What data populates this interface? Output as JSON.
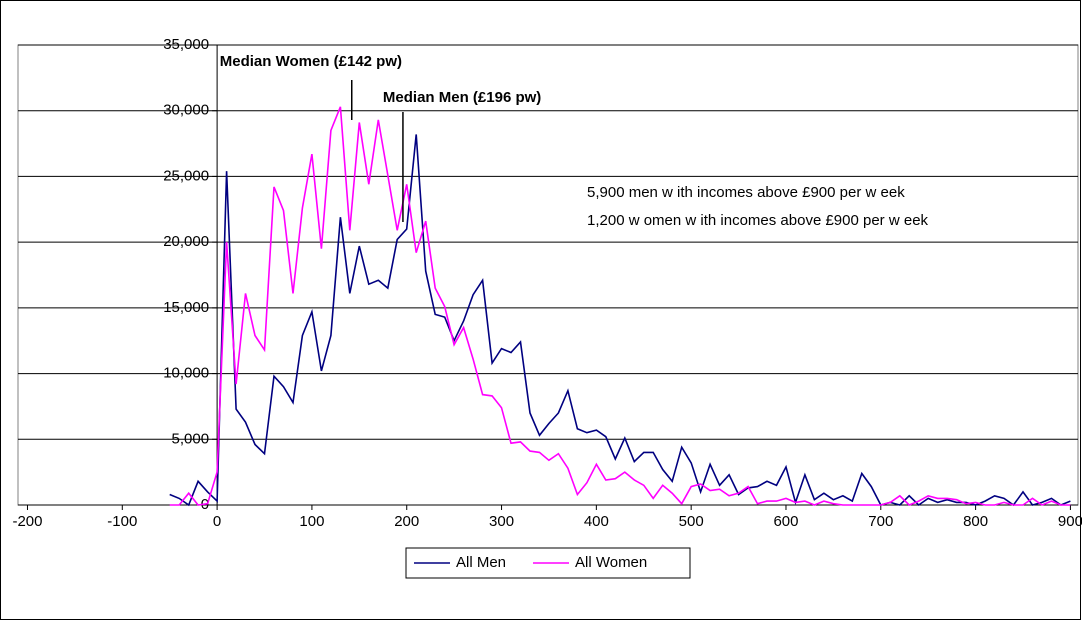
{
  "chart_data": {
    "type": "line",
    "x": [
      -50,
      -40,
      -30,
      -20,
      -10,
      0,
      10,
      20,
      30,
      40,
      50,
      60,
      70,
      80,
      90,
      100,
      110,
      120,
      130,
      140,
      150,
      160,
      170,
      180,
      190,
      200,
      210,
      220,
      230,
      240,
      250,
      260,
      270,
      280,
      290,
      300,
      310,
      320,
      330,
      340,
      350,
      360,
      370,
      380,
      390,
      400,
      410,
      420,
      430,
      440,
      450,
      460,
      470,
      480,
      490,
      500,
      510,
      520,
      530,
      540,
      550,
      560,
      570,
      580,
      590,
      600,
      610,
      620,
      630,
      640,
      650,
      660,
      670,
      680,
      690,
      700,
      710,
      720,
      730,
      740,
      750,
      760,
      770,
      780,
      790,
      800,
      810,
      820,
      830,
      840,
      850,
      860,
      870,
      880,
      890,
      900
    ],
    "series": [
      {
        "name": "All Men",
        "color": "#000080",
        "values": [
          800,
          500,
          0,
          1800,
          1000,
          300,
          25400,
          7300,
          6300,
          4600,
          3900,
          9800,
          9000,
          7800,
          12900,
          14700,
          10200,
          12900,
          21900,
          16100,
          19700,
          16800,
          17100,
          16500,
          20200,
          21000,
          28200,
          17800,
          14500,
          14300,
          12500,
          14000,
          16000,
          17100,
          10800,
          11900,
          11600,
          12400,
          7000,
          5300,
          6200,
          7000,
          8700,
          5800,
          5500,
          5700,
          5200,
          3500,
          5100,
          3300,
          4000,
          4000,
          2700,
          1800,
          4400,
          3200,
          1000,
          3100,
          1500,
          2300,
          800,
          1300,
          1400,
          1800,
          1500,
          2900,
          200,
          2300,
          400,
          900,
          400,
          700,
          300,
          2400,
          1400,
          0,
          200,
          0,
          700,
          0,
          500,
          200,
          400,
          200,
          200,
          0,
          300,
          700,
          500,
          0,
          1000,
          0,
          200,
          500,
          0,
          300
        ]
      },
      {
        "name": "All Women",
        "color": "#ff00ff",
        "values": [
          0,
          0,
          900,
          0,
          100,
          2500,
          20000,
          9200,
          16100,
          12900,
          11800,
          24200,
          22400,
          16100,
          22600,
          26700,
          19500,
          28500,
          30300,
          20900,
          29100,
          24400,
          29300,
          25100,
          20900,
          24400,
          19200,
          21600,
          16500,
          15100,
          12200,
          13500,
          11100,
          8400,
          8300,
          7400,
          4700,
          4800,
          4100,
          4000,
          3400,
          3900,
          2800,
          800,
          1700,
          3100,
          1900,
          2000,
          2500,
          1900,
          1500,
          500,
          1500,
          900,
          100,
          1400,
          1600,
          1100,
          1200,
          700,
          900,
          1400,
          100,
          300,
          300,
          500,
          200,
          300,
          0,
          300,
          100,
          0,
          0,
          0,
          0,
          0,
          200,
          700,
          0,
          300,
          700,
          500,
          500,
          400,
          100,
          200,
          0,
          0,
          200,
          0,
          0,
          500,
          0,
          300,
          0,
          0
        ]
      }
    ],
    "xlim": [
      -210,
      908
    ],
    "xticks": [
      -200,
      -100,
      0,
      100,
      200,
      300,
      400,
      500,
      600,
      700,
      800,
      900
    ],
    "ylim": [
      0,
      35000
    ],
    "yticks": [
      {
        "value": 0,
        "label": "0"
      },
      {
        "value": 5000,
        "label": "5,000"
      },
      {
        "value": 10000,
        "label": "10,000"
      },
      {
        "value": 15000,
        "label": "15,000"
      },
      {
        "value": 20000,
        "label": "20,000"
      },
      {
        "value": 25000,
        "label": "25,000"
      },
      {
        "value": 30000,
        "label": "30,000"
      },
      {
        "value": 35000,
        "label": "35,000"
      }
    ],
    "grid": true,
    "legend": "bottom",
    "annotations": [
      {
        "text": "Median Women (£142 pw)",
        "x": 142
      },
      {
        "text": "Median Men (£196 pw)",
        "x": 196
      }
    ],
    "notes": [
      "5,900 men w ith incomes above £900 per w eek",
      "1,200 w omen w ith incomes above £900 per w eek"
    ]
  }
}
